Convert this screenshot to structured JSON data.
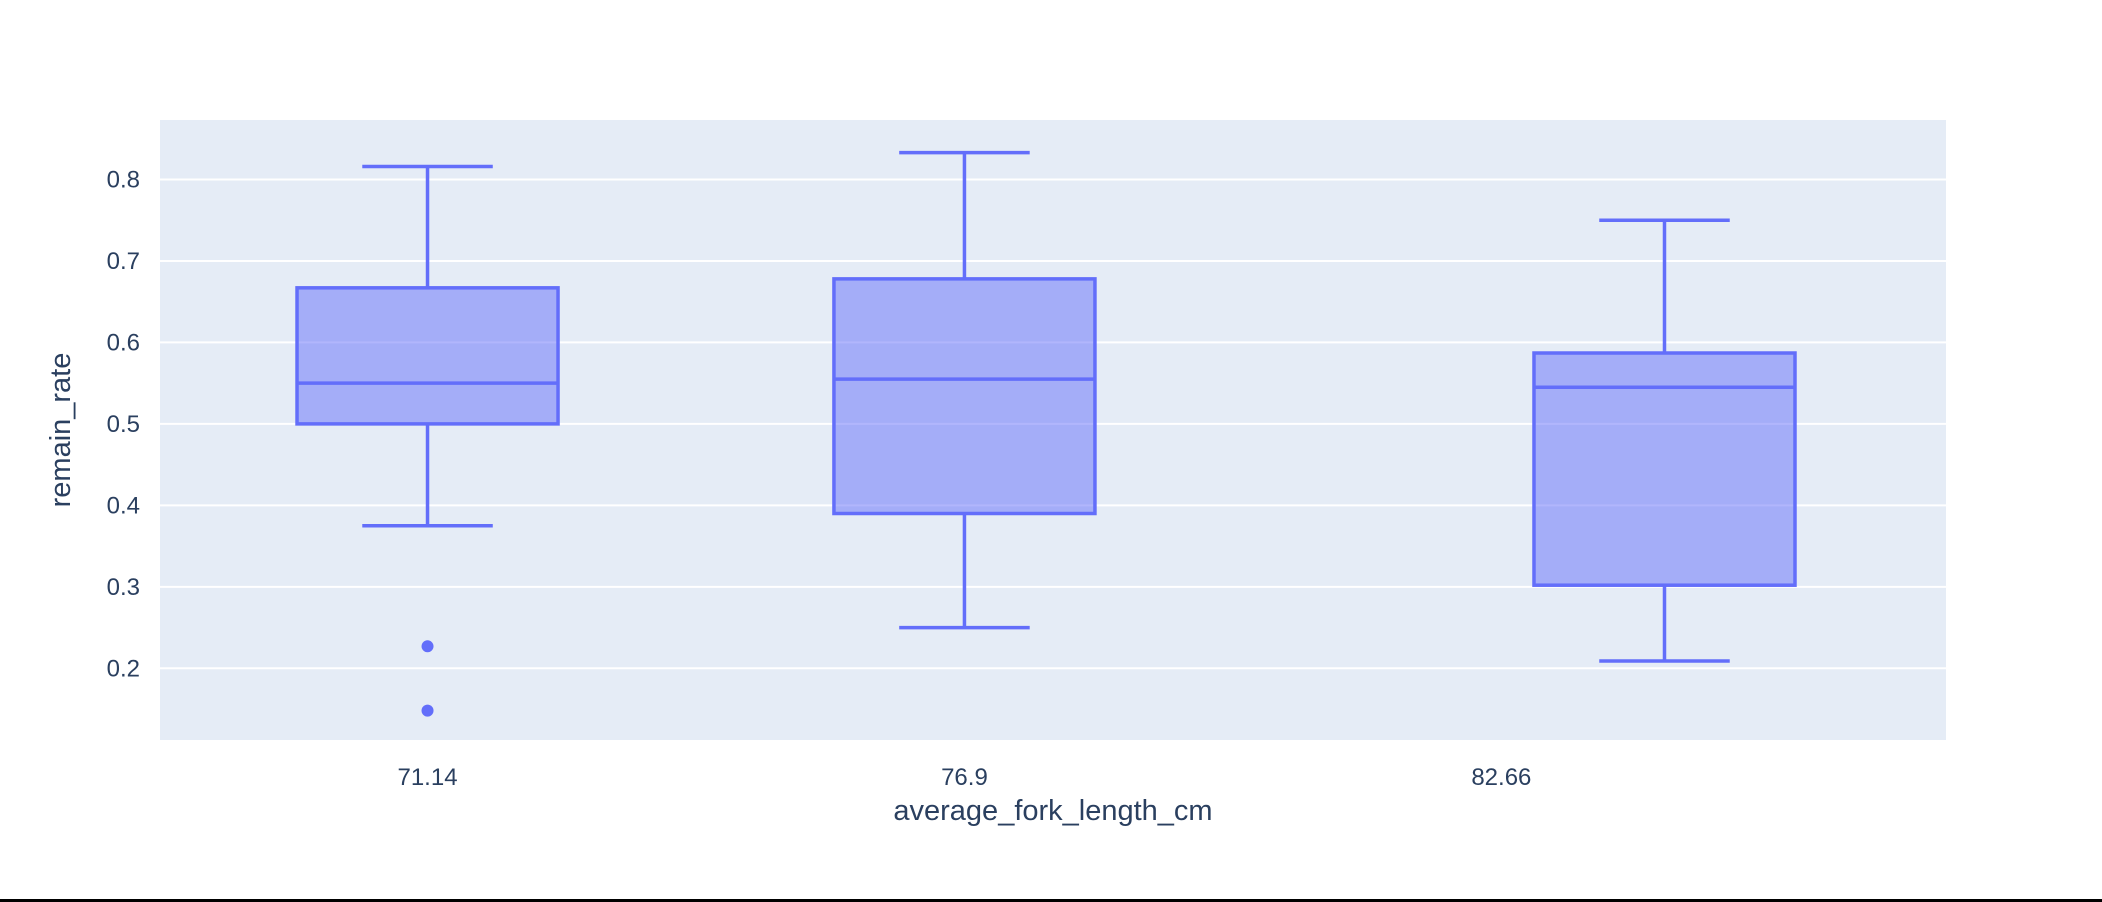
{
  "chart_data": {
    "type": "box",
    "title": "",
    "xlabel": "average_fork_length_cm",
    "ylabel": "remain_rate",
    "x_type": "linear",
    "x_tick_values": [
      71.14,
      76.9,
      82.66
    ],
    "x_tick_labels": [
      "71.14",
      "76.9",
      "82.66"
    ],
    "xlim": [
      68.27,
      87.43
    ],
    "y_tick_values": [
      0.2,
      0.3,
      0.4,
      0.5,
      0.6,
      0.7,
      0.8
    ],
    "y_tick_labels": [
      "0.2",
      "0.3",
      "0.4",
      "0.5",
      "0.6",
      "0.7",
      "0.8"
    ],
    "ylim": [
      0.112,
      0.873
    ],
    "grid": {
      "y": true,
      "x": false
    },
    "boxes": [
      {
        "x": 71.14,
        "lower_whisker": 0.375,
        "q1": 0.5,
        "median": 0.55,
        "q3": 0.667,
        "upper_whisker": 0.816,
        "outliers": [
          0.227,
          0.148
        ]
      },
      {
        "x": 76.9,
        "lower_whisker": 0.25,
        "q1": 0.39,
        "median": 0.555,
        "q3": 0.678,
        "upper_whisker": 0.833,
        "outliers": []
      },
      {
        "x": 84.41,
        "lower_whisker": 0.209,
        "q1": 0.302,
        "median": 0.545,
        "q3": 0.587,
        "upper_whisker": 0.75,
        "outliers": []
      }
    ],
    "box_width": 2.8,
    "colors": {
      "box_line": "#636efa",
      "box_fill": "rgba(99,110,250,0.5)",
      "plot_bg": "#e5ecf6",
      "grid": "#ffffff",
      "text": "#2a3f5f"
    }
  }
}
